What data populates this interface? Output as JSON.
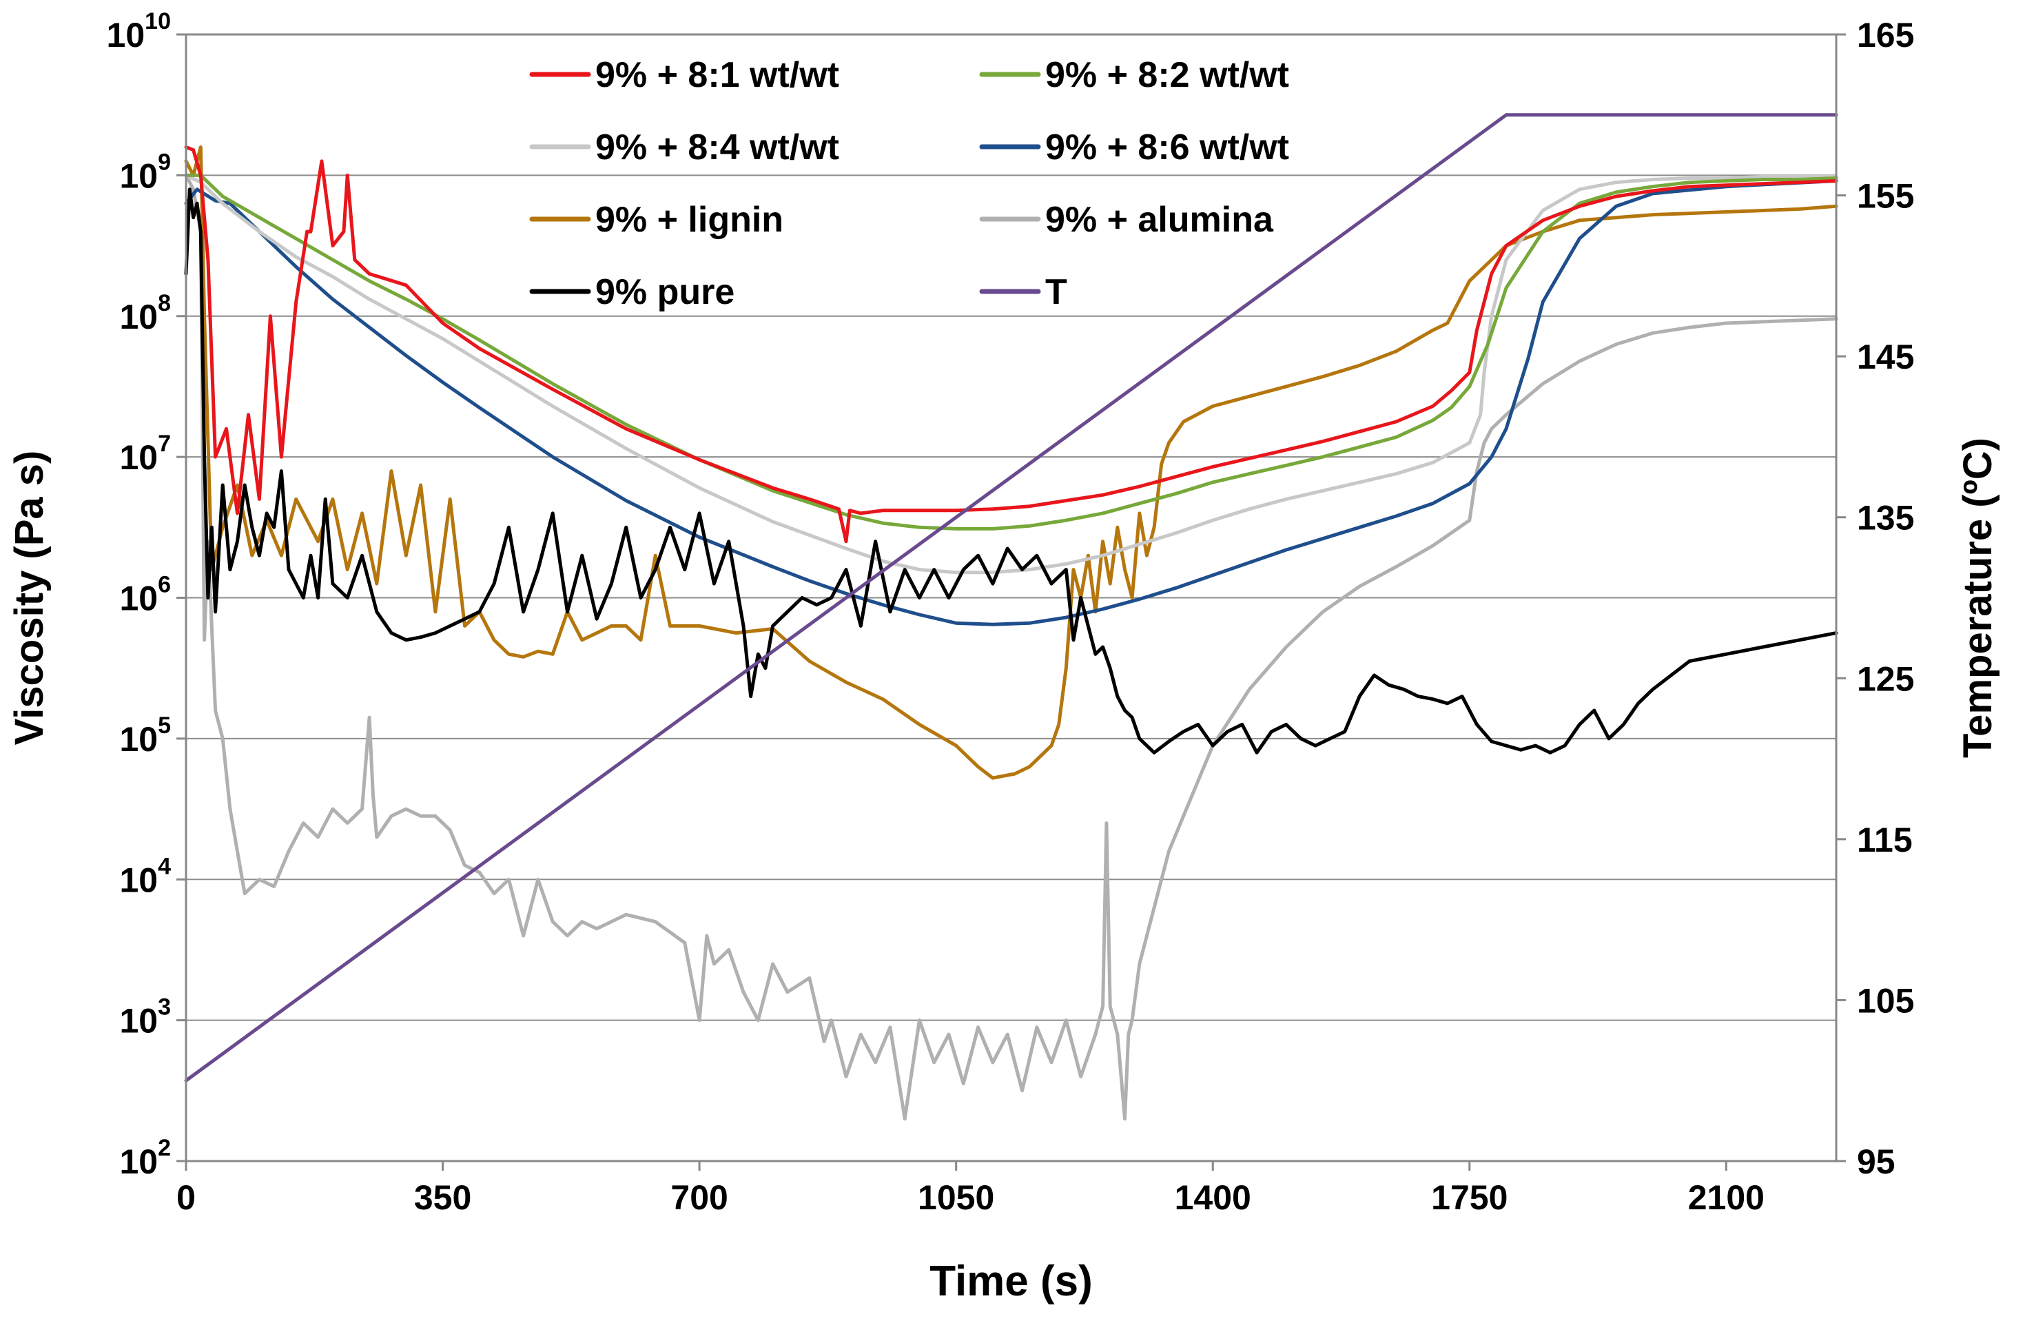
{
  "chart_data": {
    "type": "line",
    "title": "",
    "xlabel": "Time (s)",
    "ylabel_left": "Viscosity (Pa s)",
    "ylabel_right": "Temperature (ºC)",
    "xlim": [
      0,
      2250
    ],
    "ylim_left_log10": [
      2,
      10
    ],
    "ylim_right": [
      95,
      165
    ],
    "x_ticks": [
      0,
      350,
      700,
      1050,
      1400,
      1750,
      2100
    ],
    "x_tick_labels": [
      "0",
      "350",
      "700",
      "1050",
      "1400",
      "1750",
      "2100"
    ],
    "y_left_tick_exponents": [
      2,
      3,
      4,
      5,
      6,
      7,
      8,
      9,
      10
    ],
    "y_left_tick_base": "10",
    "y_right_ticks": [
      95,
      105,
      115,
      125,
      135,
      145,
      155,
      165
    ],
    "y_right_tick_labels": [
      "95",
      "105",
      "115",
      "125",
      "135",
      "145",
      "155",
      "165"
    ],
    "grid": "horizontal",
    "legend_position": "top-center",
    "series": [
      {
        "name": "9% + 8:1 wt/wt",
        "color": "#e8161b",
        "axis": "left",
        "x": [
          0,
          10,
          20,
          30,
          40,
          55,
          70,
          85,
          100,
          115,
          130,
          150,
          165,
          170,
          185,
          200,
          215,
          220,
          230,
          250,
          300,
          350,
          400,
          500,
          600,
          700,
          800,
          850,
          890,
          900,
          905,
          920,
          950,
          1000,
          1050,
          1100,
          1150,
          1200,
          1250,
          1300,
          1350,
          1400,
          1450,
          1500,
          1550,
          1600,
          1650,
          1700,
          1725,
          1750,
          1760,
          1770,
          1780,
          1800,
          1850,
          1900,
          1950,
          2000,
          2050,
          2100,
          2150,
          2200,
          2250
        ],
        "log10_values": [
          9.2,
          9.18,
          9.0,
          8.4,
          7.0,
          7.2,
          6.6,
          7.3,
          6.7,
          8.0,
          7.0,
          8.1,
          8.6,
          8.6,
          9.1,
          8.5,
          8.6,
          9.0,
          8.4,
          8.3,
          8.22,
          7.95,
          7.77,
          7.48,
          7.2,
          6.98,
          6.78,
          6.7,
          6.63,
          6.4,
          6.62,
          6.6,
          6.62,
          6.62,
          6.62,
          6.63,
          6.65,
          6.69,
          6.73,
          6.79,
          6.86,
          6.93,
          6.99,
          7.05,
          7.11,
          7.18,
          7.25,
          7.36,
          7.47,
          7.6,
          7.9,
          8.1,
          8.3,
          8.5,
          8.68,
          8.78,
          8.85,
          8.89,
          8.92,
          8.93,
          8.94,
          8.95,
          8.96
        ]
      },
      {
        "name": "9% + 8:2 wt/wt",
        "color": "#77a83a",
        "axis": "left",
        "x": [
          0,
          20,
          50,
          100,
          150,
          200,
          250,
          300,
          350,
          400,
          500,
          600,
          700,
          800,
          900,
          950,
          1000,
          1050,
          1100,
          1150,
          1200,
          1250,
          1300,
          1350,
          1400,
          1450,
          1500,
          1550,
          1600,
          1650,
          1700,
          1725,
          1750,
          1775,
          1800,
          1850,
          1900,
          1950,
          2000,
          2050,
          2100,
          2150,
          2200,
          2250
        ],
        "log10_values": [
          9.0,
          9.0,
          8.85,
          8.7,
          8.55,
          8.4,
          8.25,
          8.12,
          7.98,
          7.83,
          7.52,
          7.23,
          6.98,
          6.76,
          6.59,
          6.53,
          6.5,
          6.49,
          6.49,
          6.51,
          6.55,
          6.6,
          6.67,
          6.74,
          6.82,
          6.88,
          6.94,
          7.0,
          7.07,
          7.14,
          7.26,
          7.35,
          7.5,
          7.8,
          8.2,
          8.6,
          8.8,
          8.88,
          8.92,
          8.95,
          8.96,
          8.97,
          8.97,
          8.98
        ]
      },
      {
        "name": "9% + 8:4 wt/wt",
        "color": "#c8c8c8",
        "axis": "left",
        "x": [
          0,
          20,
          50,
          100,
          150,
          200,
          250,
          300,
          350,
          400,
          500,
          600,
          700,
          800,
          900,
          950,
          1000,
          1050,
          1100,
          1150,
          1200,
          1250,
          1300,
          1350,
          1400,
          1450,
          1500,
          1550,
          1600,
          1650,
          1700,
          1750,
          1765,
          1770,
          1780,
          1800,
          1850,
          1900,
          1950,
          2000,
          2050,
          2100,
          2150,
          2200,
          2250
        ],
        "log10_values": [
          9.0,
          8.95,
          8.8,
          8.6,
          8.42,
          8.28,
          8.12,
          7.98,
          7.84,
          7.68,
          7.36,
          7.06,
          6.78,
          6.54,
          6.35,
          6.26,
          6.2,
          6.18,
          6.18,
          6.2,
          6.24,
          6.3,
          6.38,
          6.46,
          6.55,
          6.63,
          6.7,
          6.76,
          6.82,
          6.88,
          6.96,
          7.1,
          7.3,
          7.6,
          8.0,
          8.4,
          8.75,
          8.9,
          8.95,
          8.97,
          8.98,
          8.98,
          8.99,
          8.99,
          8.99
        ]
      },
      {
        "name": "9% + 8:6 wt/wt",
        "color": "#1f4e8c",
        "axis": "left",
        "x": [
          0,
          15,
          40,
          60,
          90,
          120,
          150,
          200,
          250,
          300,
          350,
          400,
          500,
          600,
          700,
          800,
          850,
          900,
          950,
          1000,
          1050,
          1100,
          1150,
          1200,
          1250,
          1300,
          1350,
          1400,
          1450,
          1500,
          1550,
          1600,
          1650,
          1700,
          1750,
          1780,
          1800,
          1830,
          1850,
          1900,
          1950,
          2000,
          2100,
          2250
        ],
        "log10_values": [
          8.8,
          8.9,
          8.82,
          8.8,
          8.65,
          8.5,
          8.35,
          8.12,
          7.92,
          7.72,
          7.53,
          7.35,
          7.0,
          6.69,
          6.43,
          6.22,
          6.12,
          6.03,
          5.95,
          5.88,
          5.82,
          5.81,
          5.82,
          5.86,
          5.92,
          5.99,
          6.07,
          6.16,
          6.25,
          6.34,
          6.42,
          6.5,
          6.58,
          6.67,
          6.81,
          7.0,
          7.2,
          7.7,
          8.1,
          8.55,
          8.78,
          8.87,
          8.92,
          8.96
        ]
      },
      {
        "name": "9% + lignin",
        "color": "#b5760d",
        "axis": "left",
        "x": [
          0,
          10,
          20,
          25,
          35,
          50,
          70,
          90,
          110,
          130,
          150,
          180,
          200,
          220,
          240,
          260,
          280,
          300,
          320,
          340,
          360,
          380,
          400,
          420,
          440,
          460,
          480,
          500,
          520,
          540,
          560,
          580,
          600,
          620,
          640,
          660,
          700,
          750,
          800,
          850,
          900,
          950,
          1000,
          1050,
          1080,
          1100,
          1130,
          1150,
          1180,
          1190,
          1200,
          1210,
          1220,
          1230,
          1240,
          1250,
          1260,
          1270,
          1280,
          1290,
          1300,
          1310,
          1320,
          1330,
          1340,
          1360,
          1400,
          1450,
          1500,
          1550,
          1600,
          1650,
          1700,
          1720,
          1750,
          1800,
          1850,
          1900,
          1950,
          2000,
          2050,
          2100,
          2150,
          2200,
          2250
        ],
        "log10_values": [
          9.1,
          9.0,
          9.2,
          8.0,
          6.2,
          6.5,
          6.8,
          6.3,
          6.55,
          6.3,
          6.7,
          6.4,
          6.7,
          6.2,
          6.6,
          6.1,
          6.9,
          6.3,
          6.8,
          5.9,
          6.7,
          5.8,
          5.9,
          5.7,
          5.6,
          5.58,
          5.62,
          5.6,
          5.9,
          5.7,
          5.75,
          5.8,
          5.8,
          5.7,
          6.3,
          5.8,
          5.8,
          5.75,
          5.78,
          5.55,
          5.4,
          5.28,
          5.1,
          4.95,
          4.8,
          4.72,
          4.75,
          4.8,
          4.95,
          5.1,
          5.5,
          6.2,
          6.0,
          6.3,
          5.9,
          6.4,
          6.1,
          6.5,
          6.2,
          6.0,
          6.6,
          6.3,
          6.5,
          6.95,
          7.1,
          7.25,
          7.36,
          7.43,
          7.5,
          7.57,
          7.65,
          7.75,
          7.9,
          7.95,
          8.25,
          8.5,
          8.6,
          8.68,
          8.7,
          8.72,
          8.73,
          8.74,
          8.75,
          8.76,
          8.78
        ]
      },
      {
        "name": "9% + alumina",
        "color": "#b0b0b0",
        "axis": "left",
        "x": [
          0,
          10,
          20,
          25,
          30,
          40,
          50,
          60,
          70,
          80,
          100,
          120,
          140,
          160,
          180,
          200,
          220,
          240,
          250,
          255,
          260,
          280,
          300,
          320,
          340,
          360,
          380,
          400,
          420,
          440,
          460,
          480,
          500,
          520,
          540,
          560,
          600,
          640,
          680,
          700,
          710,
          720,
          740,
          760,
          780,
          800,
          820,
          850,
          870,
          880,
          900,
          920,
          940,
          960,
          980,
          1000,
          1020,
          1040,
          1060,
          1080,
          1100,
          1120,
          1140,
          1160,
          1180,
          1200,
          1220,
          1240,
          1250,
          1255,
          1260,
          1270,
          1280,
          1285,
          1290,
          1300,
          1320,
          1340,
          1360,
          1380,
          1400,
          1450,
          1500,
          1550,
          1600,
          1650,
          1700,
          1750,
          1760,
          1770,
          1780,
          1800,
          1850,
          1900,
          1950,
          2000,
          2050,
          2100,
          2150,
          2200,
          2250
        ],
        "log10_values": [
          9.0,
          8.9,
          8.6,
          5.7,
          6.4,
          5.2,
          5.0,
          4.5,
          4.2,
          3.9,
          4.0,
          3.95,
          4.2,
          4.4,
          4.3,
          4.5,
          4.4,
          4.5,
          5.15,
          4.6,
          4.3,
          4.45,
          4.5,
          4.45,
          4.45,
          4.35,
          4.1,
          4.05,
          3.9,
          4.0,
          3.6,
          4.0,
          3.7,
          3.6,
          3.7,
          3.65,
          3.75,
          3.7,
          3.55,
          3.0,
          3.6,
          3.4,
          3.5,
          3.2,
          3.0,
          3.4,
          3.2,
          3.3,
          2.85,
          3.0,
          2.6,
          2.9,
          2.7,
          2.95,
          2.3,
          3.0,
          2.7,
          2.9,
          2.55,
          2.95,
          2.7,
          2.9,
          2.5,
          2.95,
          2.7,
          3.0,
          2.6,
          2.9,
          3.1,
          4.4,
          3.1,
          2.9,
          2.3,
          2.9,
          3.0,
          3.4,
          3.8,
          4.2,
          4.45,
          4.7,
          4.95,
          5.35,
          5.65,
          5.9,
          6.08,
          6.22,
          6.37,
          6.55,
          6.9,
          7.1,
          7.2,
          7.3,
          7.52,
          7.68,
          7.8,
          7.88,
          7.92,
          7.95,
          7.96,
          7.97,
          7.98
        ]
      },
      {
        "name": "9% pure",
        "color": "#000000",
        "axis": "left",
        "x": [
          0,
          5,
          10,
          15,
          20,
          25,
          30,
          35,
          40,
          50,
          60,
          70,
          80,
          90,
          100,
          110,
          120,
          130,
          140,
          150,
          160,
          170,
          180,
          190,
          200,
          220,
          240,
          260,
          280,
          300,
          320,
          340,
          360,
          380,
          400,
          420,
          440,
          460,
          480,
          500,
          520,
          540,
          560,
          580,
          600,
          620,
          640,
          660,
          680,
          700,
          720,
          740,
          760,
          770,
          780,
          790,
          800,
          820,
          840,
          860,
          880,
          900,
          920,
          940,
          960,
          980,
          1000,
          1020,
          1040,
          1060,
          1080,
          1100,
          1120,
          1140,
          1160,
          1180,
          1200,
          1210,
          1220,
          1230,
          1240,
          1250,
          1260,
          1270,
          1280,
          1290,
          1300,
          1320,
          1340,
          1360,
          1380,
          1400,
          1420,
          1440,
          1460,
          1480,
          1500,
          1520,
          1540,
          1560,
          1580,
          1600,
          1620,
          1640,
          1660,
          1680,
          1700,
          1720,
          1740,
          1760,
          1780,
          1800,
          1820,
          1840,
          1860,
          1880,
          1900,
          1920,
          1940,
          1960,
          1980,
          2000,
          2050,
          2100,
          2150,
          2200,
          2250
        ],
        "log10_values": [
          8.3,
          8.9,
          8.7,
          8.8,
          8.6,
          7.0,
          6.0,
          6.5,
          5.9,
          6.8,
          6.2,
          6.4,
          6.8,
          6.5,
          6.3,
          6.6,
          6.5,
          6.9,
          6.2,
          6.1,
          6.0,
          6.3,
          6.0,
          6.7,
          6.1,
          6.0,
          6.3,
          5.9,
          5.75,
          5.7,
          5.72,
          5.75,
          5.8,
          5.85,
          5.9,
          6.1,
          6.5,
          5.9,
          6.2,
          6.6,
          5.9,
          6.3,
          5.85,
          6.1,
          6.5,
          6.0,
          6.2,
          6.5,
          6.2,
          6.6,
          6.1,
          6.4,
          5.8,
          5.3,
          5.6,
          5.5,
          5.8,
          5.9,
          6.0,
          5.95,
          6.0,
          6.2,
          5.8,
          6.4,
          5.9,
          6.2,
          6.0,
          6.2,
          6.0,
          6.2,
          6.3,
          6.1,
          6.35,
          6.2,
          6.3,
          6.1,
          6.2,
          5.7,
          6.0,
          5.8,
          5.6,
          5.65,
          5.5,
          5.3,
          5.2,
          5.15,
          5.0,
          4.9,
          4.98,
          5.05,
          5.1,
          4.95,
          5.05,
          5.1,
          4.9,
          5.05,
          5.1,
          5.0,
          4.95,
          5.0,
          5.05,
          5.3,
          5.45,
          5.38,
          5.35,
          5.3,
          5.28,
          5.25,
          5.3,
          5.1,
          4.98,
          4.95,
          4.92,
          4.95,
          4.9,
          4.95,
          5.1,
          5.2,
          5.0,
          5.1,
          5.25,
          5.35,
          5.55,
          5.6,
          5.65,
          5.7,
          5.75
        ]
      },
      {
        "name": "T",
        "color": "#6a4a8e",
        "axis": "right",
        "x": [
          0,
          1800,
          2250
        ],
        "values": [
          100,
          160,
          160
        ]
      }
    ]
  }
}
